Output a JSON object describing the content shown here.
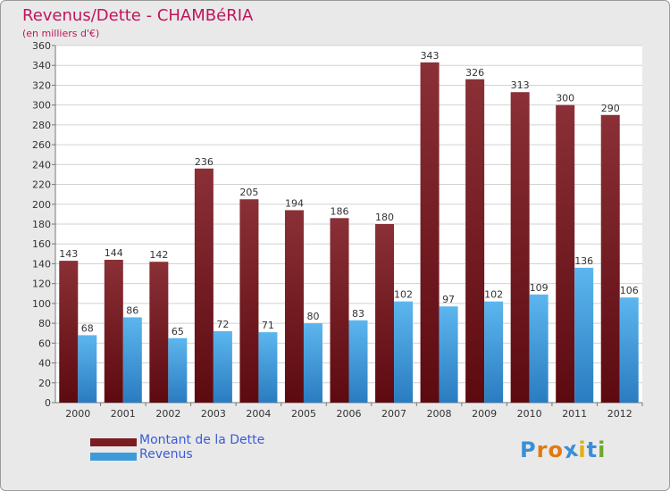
{
  "header": {
    "title": "Revenus/Dette - CHAMBéRIA",
    "subtitle": "(en milliers d'€)"
  },
  "legend": {
    "items": [
      {
        "label": "Montant de la Dette",
        "color": "#7a1d22"
      },
      {
        "label": "Revenus",
        "color": "#3d9ad8"
      }
    ]
  },
  "logo": {
    "text": "Proxiti",
    "colors": [
      "#3a8fd6",
      "#e07a10",
      "#e07a10",
      "#3a8fd6",
      "#e0b010",
      "#3a8fd6",
      "#6aa82a"
    ]
  },
  "chart_data": {
    "type": "bar",
    "categories": [
      "2000",
      "2001",
      "2002",
      "2003",
      "2004",
      "2005",
      "2006",
      "2007",
      "2008",
      "2009",
      "2010",
      "2011",
      "2012"
    ],
    "series": [
      {
        "name": "Montant de la Dette",
        "color": "#7a1d22",
        "values": [
          143,
          144,
          142,
          236,
          205,
          194,
          186,
          180,
          343,
          326,
          313,
          300,
          290
        ]
      },
      {
        "name": "Revenus",
        "color": "#3d9ad8",
        "values": [
          68,
          86,
          65,
          72,
          71,
          80,
          83,
          102,
          97,
          102,
          109,
          136,
          106
        ]
      }
    ],
    "ylim": [
      0,
      360
    ],
    "yticks": [
      0,
      20,
      40,
      60,
      80,
      100,
      120,
      140,
      160,
      180,
      200,
      220,
      240,
      260,
      280,
      300,
      320,
      340,
      360
    ],
    "grid": true,
    "legend_position": "bottom-left"
  }
}
